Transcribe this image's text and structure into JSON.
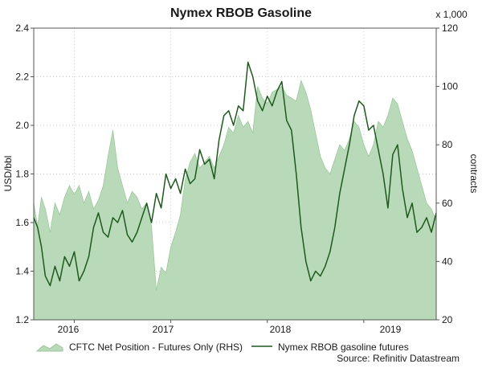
{
  "chart_data": {
    "type": "line",
    "title": "Nymex RBOB Gasoline",
    "source": "Source: Refinitiv Datastream",
    "x_tick_labels": [
      "2016",
      "2017",
      "2018",
      "2019"
    ],
    "x_tick_dates": [
      2016.0,
      2017.0,
      2018.0,
      2019.0
    ],
    "x_range": [
      2015.58,
      2019.75
    ],
    "left_axis": {
      "label": "USD/bbl",
      "range": [
        1.2,
        2.4
      ],
      "ticks": [
        1.2,
        1.4,
        1.6,
        1.8,
        2.0,
        2.2,
        2.4
      ]
    },
    "right_axis": {
      "label": "contracts",
      "unit_note": "x 1,000",
      "range": [
        20,
        120
      ],
      "ticks": [
        20,
        40,
        60,
        80,
        100,
        120
      ]
    },
    "legend_placement": "bottom",
    "colors": {
      "area_fill": "#b9dab9",
      "area_stroke": "#9cc79c",
      "line": "#1e5a1e",
      "grid": "#cccccc"
    },
    "series": [
      {
        "name": "CFTC Net Position - Futures Only (RHS)",
        "type": "area",
        "axis": "right",
        "x": [
          2015.58,
          2015.62,
          2015.66,
          2015.7,
          2015.75,
          2015.8,
          2015.85,
          2015.9,
          2015.95,
          2016.0,
          2016.05,
          2016.1,
          2016.15,
          2016.2,
          2016.25,
          2016.3,
          2016.35,
          2016.4,
          2016.45,
          2016.5,
          2016.55,
          2016.6,
          2016.65,
          2016.7,
          2016.75,
          2016.8,
          2016.85,
          2016.9,
          2016.95,
          2017.0,
          2017.05,
          2017.1,
          2017.15,
          2017.2,
          2017.25,
          2017.3,
          2017.35,
          2017.4,
          2017.45,
          2017.5,
          2017.55,
          2017.6,
          2017.65,
          2017.7,
          2017.75,
          2017.8,
          2017.85,
          2017.9,
          2017.95,
          2018.0,
          2018.05,
          2018.1,
          2018.15,
          2018.2,
          2018.25,
          2018.3,
          2018.35,
          2018.4,
          2018.45,
          2018.5,
          2018.55,
          2018.6,
          2018.65,
          2018.7,
          2018.75,
          2018.8,
          2018.85,
          2018.9,
          2018.95,
          2019.0,
          2019.05,
          2019.1,
          2019.15,
          2019.2,
          2019.25,
          2019.3,
          2019.35,
          2019.4,
          2019.45,
          2019.5,
          2019.55,
          2019.6,
          2019.65,
          2019.7,
          2019.75
        ],
        "values": [
          60,
          52,
          62,
          58,
          50,
          60,
          56,
          62,
          66,
          63,
          66,
          60,
          64,
          58,
          61,
          66,
          76,
          85,
          72,
          66,
          60,
          64,
          62,
          58,
          60,
          52,
          30,
          38,
          36,
          45,
          50,
          56,
          68,
          74,
          77,
          72,
          74,
          76,
          72,
          76,
          80,
          86,
          84,
          90,
          86,
          88,
          84,
          100,
          96,
          94,
          98,
          99,
          100,
          97,
          96,
          95,
          102,
          98,
          92,
          84,
          76,
          72,
          70,
          75,
          80,
          78,
          82,
          88,
          86,
          80,
          76,
          80,
          88,
          86,
          90,
          96,
          94,
          88,
          82,
          78,
          72,
          66,
          60,
          58,
          54
        ]
      },
      {
        "name": "Nymex RBOB gasoline futures",
        "type": "line",
        "axis": "left",
        "x": [
          2015.58,
          2015.62,
          2015.66,
          2015.7,
          2015.75,
          2015.8,
          2015.85,
          2015.9,
          2015.95,
          2016.0,
          2016.05,
          2016.1,
          2016.15,
          2016.2,
          2016.25,
          2016.3,
          2016.35,
          2016.4,
          2016.45,
          2016.5,
          2016.55,
          2016.6,
          2016.65,
          2016.7,
          2016.75,
          2016.8,
          2016.85,
          2016.9,
          2016.95,
          2017.0,
          2017.05,
          2017.1,
          2017.15,
          2017.2,
          2017.25,
          2017.3,
          2017.35,
          2017.4,
          2017.45,
          2017.5,
          2017.55,
          2017.6,
          2017.65,
          2017.7,
          2017.75,
          2017.8,
          2017.85,
          2017.9,
          2017.95,
          2018.0,
          2018.05,
          2018.1,
          2018.15,
          2018.2,
          2018.25,
          2018.3,
          2018.35,
          2018.4,
          2018.45,
          2018.5,
          2018.55,
          2018.6,
          2018.65,
          2018.7,
          2018.75,
          2018.8,
          2018.85,
          2018.9,
          2018.95,
          2019.0,
          2019.05,
          2019.1,
          2019.15,
          2019.2,
          2019.25,
          2019.3,
          2019.35,
          2019.4,
          2019.45,
          2019.5,
          2019.55,
          2019.6,
          2019.65,
          2019.7,
          2019.75
        ],
        "values": [
          1.62,
          1.58,
          1.5,
          1.38,
          1.34,
          1.42,
          1.36,
          1.46,
          1.42,
          1.48,
          1.36,
          1.4,
          1.46,
          1.58,
          1.64,
          1.56,
          1.54,
          1.62,
          1.6,
          1.65,
          1.55,
          1.52,
          1.56,
          1.62,
          1.68,
          1.6,
          1.72,
          1.66,
          1.8,
          1.74,
          1.78,
          1.72,
          1.82,
          1.76,
          1.78,
          1.9,
          1.84,
          1.86,
          1.78,
          1.94,
          2.04,
          2.06,
          2.0,
          2.08,
          2.06,
          2.26,
          2.2,
          2.1,
          2.06,
          2.12,
          2.08,
          2.14,
          2.18,
          2.02,
          1.98,
          1.8,
          1.58,
          1.44,
          1.36,
          1.4,
          1.38,
          1.42,
          1.48,
          1.58,
          1.72,
          1.82,
          1.92,
          2.04,
          2.1,
          2.08,
          1.98,
          2.0,
          1.9,
          1.8,
          1.66,
          1.88,
          1.92,
          1.74,
          1.62,
          1.68,
          1.56,
          1.58,
          1.62,
          1.56,
          1.64
        ]
      }
    ]
  }
}
